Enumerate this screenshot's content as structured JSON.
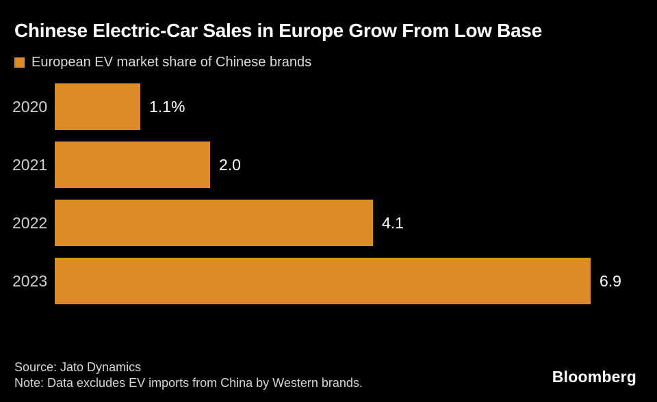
{
  "title": "Chinese Electric-Car Sales in Europe Grow From Low Base",
  "legend": {
    "label": "European EV market share of Chinese brands"
  },
  "chart_data": {
    "type": "bar",
    "orientation": "horizontal",
    "title": "Chinese Electric-Car Sales in Europe Grow From Low Base",
    "series_name": "European EV market share of Chinese brands",
    "categories": [
      "2020",
      "2021",
      "2022",
      "2023"
    ],
    "values": [
      1.1,
      2.0,
      4.1,
      6.9
    ],
    "value_labels": [
      "1.1%",
      "2.0",
      "4.1",
      "6.9"
    ],
    "unit": "percent",
    "xlim": [
      0,
      6.9
    ],
    "grid": false,
    "legend_position": "top-left",
    "bar_color": "#DD8A28"
  },
  "footer": {
    "source": "Source: Jato Dynamics",
    "note": "Note: Data excludes EV imports from China by Western brands.",
    "brand": "Bloomberg"
  },
  "colors": {
    "background": "#000000",
    "accent_orange": "#DD8A28",
    "title_text": "#FFFFFF",
    "category_text": "#CFCFCF",
    "value_text": "#FFFFFF",
    "legend_text": "#DBDBDB",
    "footer_text": "#D6D6D6"
  }
}
